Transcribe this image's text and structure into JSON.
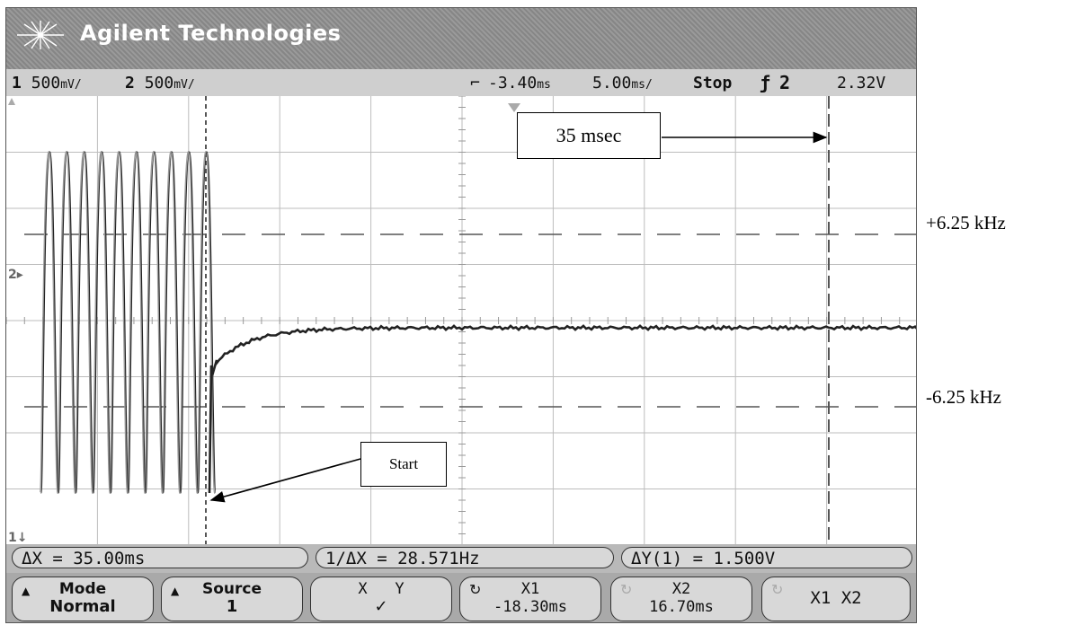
{
  "brand": {
    "name": "Agilent Technologies",
    "logo_icon": "starburst-icon"
  },
  "status": {
    "ch1_num": "1",
    "ch1_scale": "500",
    "ch1_unit": "mV/",
    "ch2_num": "2",
    "ch2_scale": "500",
    "ch2_unit": "mV/",
    "time_delay": "-3.40",
    "time_delay_unit": "ms",
    "time_scale": "5.00",
    "time_scale_unit": "ms/",
    "run_state": "Stop",
    "trigger_icon": "falling-edge-icon",
    "trigger_source": "2",
    "trigger_level": "2.32V"
  },
  "measurements": {
    "delta_x": "ΔX = 35.00ms",
    "inv_delta_x": "1/ΔX = 28.571Hz",
    "delta_y": "ΔY(1) = 1.500V"
  },
  "softkeys": [
    {
      "label": "Mode",
      "value": "Normal"
    },
    {
      "label": "Source",
      "value": "1"
    },
    {
      "label": "X   Y",
      "value": "✓"
    },
    {
      "label": "X1",
      "value": "-18.30ms"
    },
    {
      "label": "X2",
      "value": "16.70ms"
    },
    {
      "label": "X1 X2",
      "value": ""
    }
  ],
  "annotations": {
    "msec_box": "35 msec",
    "start_box": "Start",
    "upper_freq": "+6.25 kHz",
    "lower_freq": "-6.25 kHz"
  },
  "markers": {
    "ch2_ground": "2",
    "ch1_ground": "1",
    "trigger_arrow_icon": "up-arrow-icon"
  },
  "colors": {
    "trace": "#222222",
    "cursor": "#555555",
    "grid": "#bdbdbd",
    "background": "#ffffff",
    "frame": "#c7c7c7"
  }
}
